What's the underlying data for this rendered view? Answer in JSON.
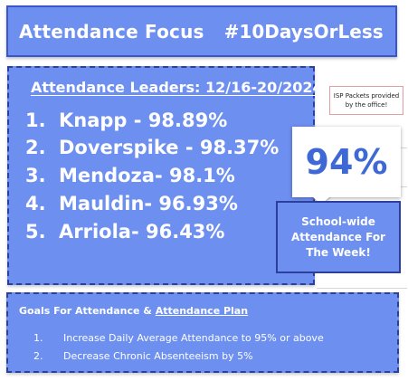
{
  "header": {
    "title": "Attendance Focus",
    "hashtag": "#10DaysOrLess"
  },
  "leaders": {
    "title": "Attendance Leaders: 12/16-20/2024",
    "items": [
      {
        "rank": "1.",
        "text": "Knapp - 98.89%"
      },
      {
        "rank": "2.",
        "text": "Doverspike - 98.37%"
      },
      {
        "rank": "3.",
        "text": "Mendoza- 98.1%"
      },
      {
        "rank": "4.",
        "text": "Mauldin- 96.93%"
      },
      {
        "rank": "5.",
        "text": "Arriola- 96.43%"
      }
    ]
  },
  "isp_note": {
    "line1": "ISP Packets provided",
    "line2": "by the office!"
  },
  "school_wide": {
    "percent": "94%",
    "caption": "School-wide Attendance For The Week!"
  },
  "goals": {
    "heading_prefix": "Goals For Attendance & ",
    "heading_link": "Attendance Plan",
    "items": [
      {
        "num": "1.",
        "text": "Increase Daily Average Attendance to 95% or above"
      },
      {
        "num": "2.",
        "text": "Decrease Chronic Absenteeism by 5%"
      }
    ]
  },
  "colors": {
    "panel_blue": "#6d8ff0",
    "border_blue": "#2c3f9e",
    "percent_text": "#3e68d6"
  }
}
